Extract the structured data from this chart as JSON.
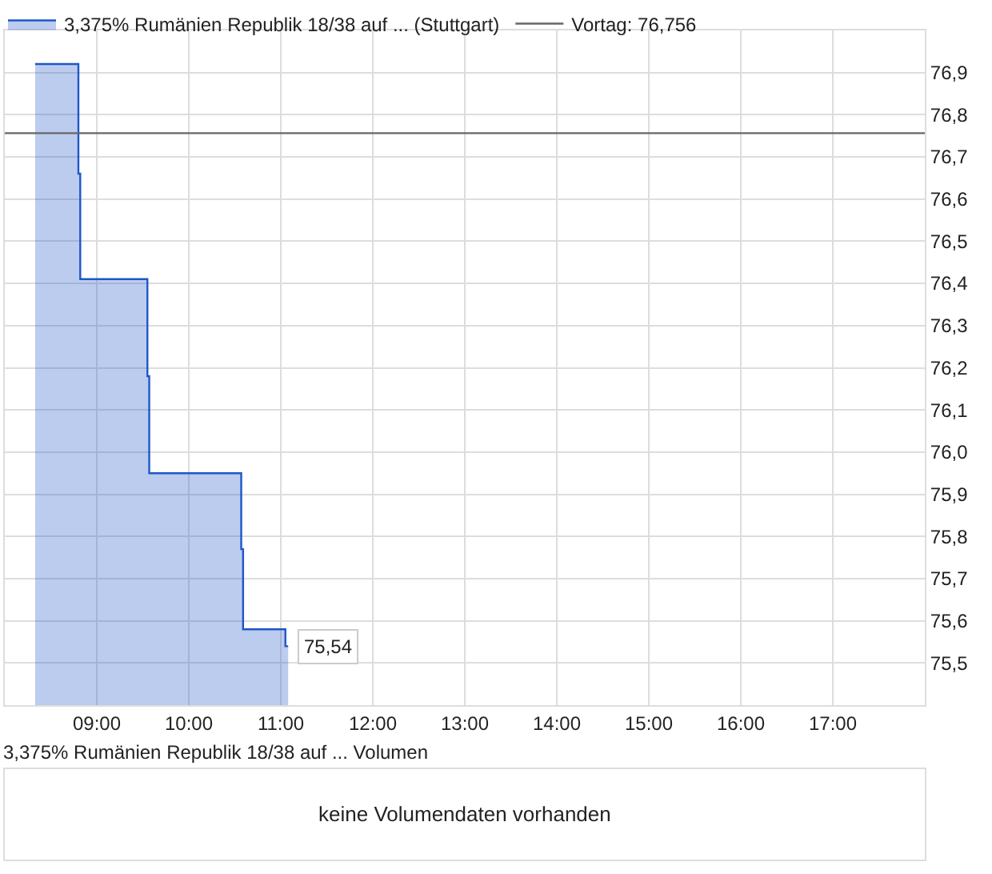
{
  "chart_data": [
    {
      "type": "area",
      "legend": "top left",
      "grid": true,
      "x": [
        8.33,
        8.8,
        8.8,
        8.82,
        8.82,
        9.55,
        9.55,
        9.57,
        9.57,
        10.57,
        10.57,
        10.59,
        10.59,
        11.05,
        11.05,
        11.08
      ],
      "series": [
        {
          "name": "3,375% Rumänien Republik 18/38 auf ... (Stuttgart)",
          "color": "#1f56c8",
          "values": [
            76.92,
            76.92,
            76.66,
            76.66,
            76.41,
            76.41,
            76.18,
            76.18,
            75.95,
            75.95,
            75.77,
            75.77,
            75.58,
            75.58,
            75.54,
            75.54
          ]
        }
      ],
      "xlim": [
        8,
        18
      ],
      "xticks": [
        {
          "value": 9,
          "label": "09:00"
        },
        {
          "value": 10,
          "label": "10:00"
        },
        {
          "value": 11,
          "label": "11:00"
        },
        {
          "value": 12,
          "label": "12:00"
        },
        {
          "value": 13,
          "label": "13:00"
        },
        {
          "value": 14,
          "label": "14:00"
        },
        {
          "value": 15,
          "label": "15:00"
        },
        {
          "value": 16,
          "label": "16:00"
        },
        {
          "value": 17,
          "label": "17:00"
        }
      ],
      "ylim": [
        75.4,
        77.0
      ],
      "yticks": [
        {
          "value": 75.5,
          "label": "75,5"
        },
        {
          "value": 75.6,
          "label": "75,6"
        },
        {
          "value": 75.7,
          "label": "75,7"
        },
        {
          "value": 75.8,
          "label": "75,8"
        },
        {
          "value": 75.9,
          "label": "75,9"
        },
        {
          "value": 76.0,
          "label": "76,0"
        },
        {
          "value": 76.1,
          "label": "76,1"
        },
        {
          "value": 76.2,
          "label": "76,2"
        },
        {
          "value": 76.3,
          "label": "76,3"
        },
        {
          "value": 76.4,
          "label": "76,4"
        },
        {
          "value": 76.5,
          "label": "76,5"
        },
        {
          "value": 76.6,
          "label": "76,6"
        },
        {
          "value": 76.7,
          "label": "76,7"
        },
        {
          "value": 76.8,
          "label": "76,8"
        },
        {
          "value": 76.9,
          "label": "76,9"
        }
      ],
      "ref_lines": [
        {
          "axis": "y",
          "value": 76.756,
          "label": "Vortag: 76,756",
          "color": "#666666"
        }
      ],
      "annotations": [
        {
          "text": "75,54",
          "x": 11.08,
          "y": 75.54
        }
      ]
    },
    {
      "type": "other",
      "title": "3,375% Rumänien Republik 18/38 auf ... Volumen",
      "annotations": [
        "keine Volumendaten vorhanden"
      ]
    }
  ]
}
